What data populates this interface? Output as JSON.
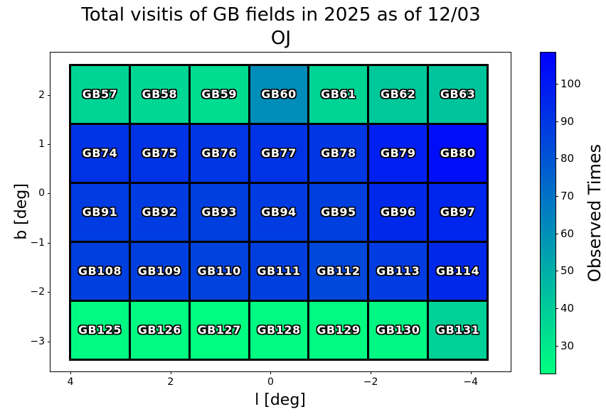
{
  "title": {
    "line1": "Total visitis of GB fields in 2025 as of 12/03",
    "line2": "OJ"
  },
  "chart_data": {
    "type": "heatmap",
    "title": "Total visitis of GB fields in 2025 as of 12/03 OJ",
    "xlabel": "l [deg]",
    "ylabel": "b [deg]",
    "xlim": [
      4.4,
      -4.8
    ],
    "ylim": [
      2.86,
      -3.61
    ],
    "grid_on": false,
    "x_ticks": [
      {
        "value": 4,
        "label": "4"
      },
      {
        "value": 2,
        "label": "2"
      },
      {
        "value": 0,
        "label": "0"
      },
      {
        "value": -2,
        "label": "−2"
      },
      {
        "value": -4,
        "label": "−4"
      }
    ],
    "y_ticks": [
      {
        "value": 2,
        "label": "2"
      },
      {
        "value": 1,
        "label": "1"
      },
      {
        "value": 0,
        "label": "0"
      },
      {
        "value": -1,
        "label": "−1"
      },
      {
        "value": -2,
        "label": "−2"
      },
      {
        "value": -3,
        "label": "−3"
      }
    ],
    "grid_extent": {
      "l": [
        4.03,
        -4.36
      ],
      "b": [
        2.63,
        -3.39
      ]
    },
    "colorbar": {
      "label": "Observed Times",
      "cmap": "winter_r",
      "color_low": "#00ff80",
      "color_high": "#0000ff",
      "vmin": 22.6,
      "vmax": 108.3,
      "position": "right",
      "ticks": [
        {
          "value": 100,
          "label": "100"
        },
        {
          "value": 90,
          "label": "90"
        },
        {
          "value": 80,
          "label": "80"
        },
        {
          "value": 70,
          "label": "70"
        },
        {
          "value": 60,
          "label": "60"
        },
        {
          "value": 50,
          "label": "50"
        },
        {
          "value": 40,
          "label": "40"
        },
        {
          "value": 30,
          "label": "30"
        }
      ]
    },
    "rows": [
      {
        "fields": [
          "GB57",
          "GB58",
          "GB59",
          "GB60",
          "GB61",
          "GB62",
          "GB63"
        ],
        "values": [
          37,
          36,
          34,
          61,
          37,
          41,
          42
        ]
      },
      {
        "fields": [
          "GB74",
          "GB75",
          "GB76",
          "GB77",
          "GB78",
          "GB79",
          "GB80"
        ],
        "values": [
          91,
          91,
          90,
          91,
          90,
          98,
          104
        ]
      },
      {
        "fields": [
          "GB91",
          "GB92",
          "GB93",
          "GB94",
          "GB95",
          "GB96",
          "GB97"
        ],
        "values": [
          88,
          88,
          87,
          88,
          87,
          95,
          96
        ]
      },
      {
        "fields": [
          "GB108",
          "GB109",
          "GB110",
          "GB111",
          "GB112",
          "GB113",
          "GB114"
        ],
        "values": [
          87,
          87,
          86,
          87,
          84,
          88,
          95
        ]
      },
      {
        "fields": [
          "GB125",
          "GB126",
          "GB127",
          "GB128",
          "GB129",
          "GB130",
          "GB131"
        ],
        "values": [
          24,
          24,
          23,
          24,
          24,
          25,
          38
        ]
      }
    ]
  }
}
